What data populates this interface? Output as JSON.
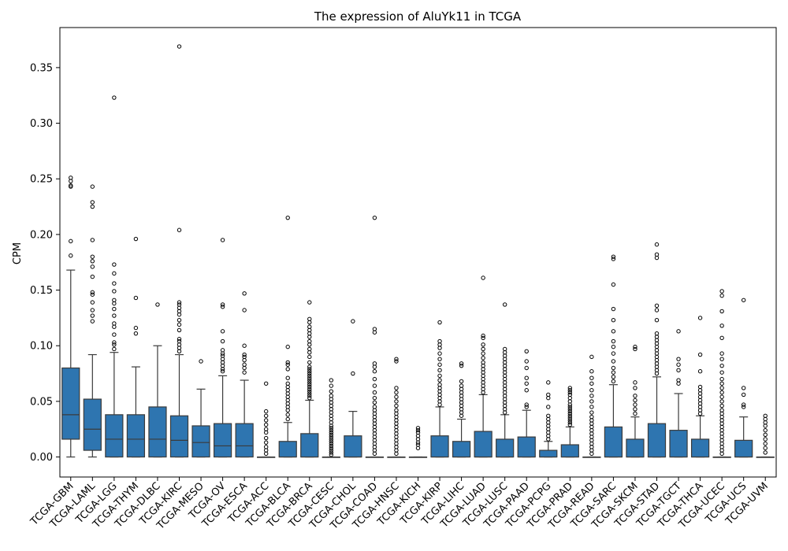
{
  "chart_data": {
    "type": "box",
    "title": "The expression of AluYk11 in TCGA",
    "xlabel": "",
    "ylabel": "CPM",
    "ylim": [
      -0.018,
      0.386
    ],
    "yticks": [
      "0.00",
      "0.05",
      "0.10",
      "0.15",
      "0.20",
      "0.25",
      "0.30",
      "0.35"
    ],
    "grid": false,
    "legend": "none",
    "box_color": "#2e75b0",
    "categories": [
      "TCGA-GBM",
      "TCGA-LAML",
      "TCGA-LGG",
      "TCGA-THYM",
      "TCGA-DLBC",
      "TCGA-KIRC",
      "TCGA-MESO",
      "TCGA-OV",
      "TCGA-ESCA",
      "TCGA-ACC",
      "TCGA-BLCA",
      "TCGA-BRCA",
      "TCGA-CESC",
      "TCGA-CHOL",
      "TCGA-COAD",
      "TCGA-HNSC",
      "TCGA-KICH",
      "TCGA-KIRP",
      "TCGA-LIHC",
      "TCGA-LUAD",
      "TCGA-LUSC",
      "TCGA-PAAD",
      "TCGA-PCPG",
      "TCGA-PRAD",
      "TCGA-READ",
      "TCGA-SARC",
      "TCGA-SKCM",
      "TCGA-STAD",
      "TCGA-TGCT",
      "TCGA-THCA",
      "TCGA-UCEC",
      "TCGA-UCS",
      "TCGA-UVM"
    ],
    "boxes": [
      {
        "q1": 0.016,
        "median": 0.038,
        "q3": 0.08,
        "whislo": 0.0,
        "whishi": 0.168,
        "fliers": [
          0.181,
          0.194,
          0.243,
          0.244,
          0.248,
          0.251
        ]
      },
      {
        "q1": 0.006,
        "median": 0.025,
        "q3": 0.052,
        "whislo": 0.0,
        "whishi": 0.092,
        "fliers": [
          0.122,
          0.127,
          0.132,
          0.139,
          0.146,
          0.148,
          0.162,
          0.171,
          0.176,
          0.18,
          0.195,
          0.225,
          0.229,
          0.243
        ]
      },
      {
        "q1": 0.0,
        "median": 0.016,
        "q3": 0.038,
        "whislo": 0.0,
        "whishi": 0.094,
        "fliers": [
          0.097,
          0.101,
          0.103,
          0.11,
          0.117,
          0.12,
          0.127,
          0.133,
          0.138,
          0.141,
          0.149,
          0.156,
          0.165,
          0.173,
          0.323
        ]
      },
      {
        "q1": 0.0,
        "median": 0.016,
        "q3": 0.038,
        "whislo": 0.0,
        "whishi": 0.081,
        "fliers": [
          0.111,
          0.116,
          0.143,
          0.196
        ]
      },
      {
        "q1": 0.0,
        "median": 0.016,
        "q3": 0.045,
        "whislo": 0.0,
        "whishi": 0.1,
        "fliers": [
          0.137
        ]
      },
      {
        "q1": 0.0,
        "median": 0.015,
        "q3": 0.037,
        "whislo": 0.0,
        "whishi": 0.092,
        "fliers": [
          0.095,
          0.098,
          0.101,
          0.104,
          0.106,
          0.114,
          0.119,
          0.123,
          0.128,
          0.131,
          0.134,
          0.137,
          0.139,
          0.204,
          0.369
        ]
      },
      {
        "q1": 0.0,
        "median": 0.013,
        "q3": 0.028,
        "whislo": 0.0,
        "whishi": 0.061,
        "fliers": [
          0.086
        ]
      },
      {
        "q1": 0.0,
        "median": 0.01,
        "q3": 0.03,
        "whislo": 0.0,
        "whishi": 0.073,
        "fliers": [
          0.077,
          0.079,
          0.082,
          0.085,
          0.088,
          0.091,
          0.093,
          0.096,
          0.104,
          0.113,
          0.135,
          0.137,
          0.195
        ]
      },
      {
        "q1": 0.0,
        "median": 0.01,
        "q3": 0.03,
        "whislo": 0.0,
        "whishi": 0.069,
        "fliers": [
          0.076,
          0.08,
          0.083,
          0.087,
          0.09,
          0.092,
          0.1,
          0.132,
          0.147
        ]
      },
      {
        "q1": 0.0,
        "median": 0.0,
        "q3": 0.0,
        "whislo": 0.0,
        "whishi": 0.0,
        "fliers": [
          0.003,
          0.006,
          0.009,
          0.013,
          0.017,
          0.022,
          0.025,
          0.029,
          0.033,
          0.037,
          0.041,
          0.066
        ]
      },
      {
        "q1": 0.0,
        "median": 0.0,
        "q3": 0.014,
        "whislo": 0.0,
        "whishi": 0.031,
        "fliers": [
          0.034,
          0.038,
          0.042,
          0.045,
          0.048,
          0.051,
          0.054,
          0.057,
          0.06,
          0.063,
          0.066,
          0.071,
          0.079,
          0.083,
          0.085,
          0.099,
          0.215
        ]
      },
      {
        "q1": 0.0,
        "median": 0.0,
        "q3": 0.021,
        "whislo": 0.0,
        "whishi": 0.051,
        "fliers": [
          0.053,
          0.055,
          0.057,
          0.059,
          0.061,
          0.063,
          0.065,
          0.067,
          0.069,
          0.071,
          0.073,
          0.075,
          0.077,
          0.079,
          0.081,
          0.085,
          0.09,
          0.094,
          0.097,
          0.101,
          0.104,
          0.108,
          0.111,
          0.114,
          0.117,
          0.121,
          0.124,
          0.139
        ]
      },
      {
        "q1": 0.0,
        "median": 0.0,
        "q3": 0.0,
        "whislo": 0.0,
        "whishi": 0.0,
        "fliers": [
          0.002,
          0.004,
          0.006,
          0.008,
          0.01,
          0.012,
          0.014,
          0.016,
          0.018,
          0.02,
          0.022,
          0.024,
          0.026,
          0.028,
          0.031,
          0.034,
          0.037,
          0.04,
          0.043,
          0.046,
          0.049,
          0.052,
          0.055,
          0.059,
          0.064,
          0.069
        ]
      },
      {
        "q1": 0.0,
        "median": 0.0,
        "q3": 0.019,
        "whislo": 0.0,
        "whishi": 0.041,
        "fliers": [
          0.075,
          0.122
        ]
      },
      {
        "q1": 0.0,
        "median": 0.0,
        "q3": 0.0,
        "whislo": 0.0,
        "whishi": 0.0,
        "fliers": [
          0.003,
          0.006,
          0.009,
          0.012,
          0.015,
          0.018,
          0.021,
          0.024,
          0.027,
          0.03,
          0.033,
          0.036,
          0.039,
          0.042,
          0.045,
          0.049,
          0.053,
          0.058,
          0.064,
          0.07,
          0.077,
          0.081,
          0.084,
          0.112,
          0.115,
          0.215
        ]
      },
      {
        "q1": 0.0,
        "median": 0.0,
        "q3": 0.0,
        "whislo": 0.0,
        "whishi": 0.0,
        "fliers": [
          0.003,
          0.006,
          0.009,
          0.012,
          0.015,
          0.018,
          0.021,
          0.024,
          0.027,
          0.03,
          0.033,
          0.036,
          0.039,
          0.042,
          0.046,
          0.05,
          0.054,
          0.058,
          0.062,
          0.086,
          0.088
        ]
      },
      {
        "q1": 0.0,
        "median": 0.0,
        "q3": 0.0,
        "whislo": 0.0,
        "whishi": 0.0,
        "fliers": [
          0.008,
          0.011,
          0.013,
          0.016,
          0.019,
          0.022,
          0.024,
          0.026
        ]
      },
      {
        "q1": 0.0,
        "median": 0.0,
        "q3": 0.019,
        "whislo": 0.0,
        "whishi": 0.045,
        "fliers": [
          0.047,
          0.05,
          0.053,
          0.056,
          0.059,
          0.062,
          0.065,
          0.069,
          0.073,
          0.078,
          0.083,
          0.088,
          0.093,
          0.098,
          0.101,
          0.104,
          0.121
        ]
      },
      {
        "q1": 0.0,
        "median": 0.0,
        "q3": 0.014,
        "whislo": 0.0,
        "whishi": 0.034,
        "fliers": [
          0.037,
          0.04,
          0.043,
          0.046,
          0.049,
          0.052,
          0.055,
          0.058,
          0.061,
          0.064,
          0.068,
          0.082,
          0.084
        ]
      },
      {
        "q1": 0.0,
        "median": 0.0,
        "q3": 0.023,
        "whislo": 0.0,
        "whishi": 0.056,
        "fliers": [
          0.058,
          0.061,
          0.064,
          0.067,
          0.07,
          0.073,
          0.076,
          0.079,
          0.082,
          0.085,
          0.089,
          0.093,
          0.097,
          0.101,
          0.107,
          0.109,
          0.161
        ]
      },
      {
        "q1": 0.0,
        "median": 0.0,
        "q3": 0.016,
        "whislo": 0.0,
        "whishi": 0.038,
        "fliers": [
          0.04,
          0.043,
          0.046,
          0.049,
          0.052,
          0.055,
          0.058,
          0.061,
          0.064,
          0.067,
          0.07,
          0.073,
          0.076,
          0.079,
          0.082,
          0.085,
          0.088,
          0.091,
          0.094,
          0.097,
          0.137
        ]
      },
      {
        "q1": 0.0,
        "median": 0.0,
        "q3": 0.018,
        "whislo": 0.0,
        "whishi": 0.042,
        "fliers": [
          0.045,
          0.047,
          0.06,
          0.066,
          0.071,
          0.08,
          0.086,
          0.095
        ]
      },
      {
        "q1": 0.0,
        "median": 0.0,
        "q3": 0.006,
        "whislo": 0.0,
        "whishi": 0.014,
        "fliers": [
          0.016,
          0.019,
          0.022,
          0.025,
          0.028,
          0.031,
          0.034,
          0.037,
          0.045,
          0.053,
          0.056,
          0.067
        ]
      },
      {
        "q1": 0.0,
        "median": 0.0,
        "q3": 0.011,
        "whislo": 0.0,
        "whishi": 0.027,
        "fliers": [
          0.029,
          0.031,
          0.033,
          0.035,
          0.037,
          0.039,
          0.041,
          0.043,
          0.045,
          0.047,
          0.05,
          0.053,
          0.056,
          0.058,
          0.06,
          0.062
        ]
      },
      {
        "q1": 0.0,
        "median": 0.0,
        "q3": 0.0,
        "whislo": 0.0,
        "whishi": 0.0,
        "fliers": [
          0.003,
          0.006,
          0.009,
          0.012,
          0.015,
          0.018,
          0.021,
          0.024,
          0.027,
          0.03,
          0.033,
          0.036,
          0.04,
          0.045,
          0.05,
          0.055,
          0.06,
          0.066,
          0.071,
          0.077,
          0.09
        ]
      },
      {
        "q1": 0.0,
        "median": 0.0,
        "q3": 0.027,
        "whislo": 0.0,
        "whishi": 0.065,
        "fliers": [
          0.068,
          0.072,
          0.076,
          0.08,
          0.086,
          0.093,
          0.099,
          0.104,
          0.113,
          0.123,
          0.133,
          0.155,
          0.178,
          0.18
        ]
      },
      {
        "q1": 0.0,
        "median": 0.0,
        "q3": 0.016,
        "whislo": 0.0,
        "whishi": 0.036,
        "fliers": [
          0.039,
          0.043,
          0.047,
          0.051,
          0.055,
          0.062,
          0.067,
          0.097,
          0.099
        ]
      },
      {
        "q1": 0.0,
        "median": 0.0,
        "q3": 0.03,
        "whislo": 0.0,
        "whishi": 0.072,
        "fliers": [
          0.075,
          0.078,
          0.081,
          0.084,
          0.087,
          0.09,
          0.093,
          0.096,
          0.099,
          0.102,
          0.105,
          0.108,
          0.111,
          0.123,
          0.132,
          0.136,
          0.179,
          0.182,
          0.191
        ]
      },
      {
        "q1": 0.0,
        "median": 0.0,
        "q3": 0.024,
        "whislo": 0.0,
        "whishi": 0.057,
        "fliers": [
          0.066,
          0.069,
          0.078,
          0.083,
          0.088,
          0.113
        ]
      },
      {
        "q1": 0.0,
        "median": 0.0,
        "q3": 0.016,
        "whislo": 0.0,
        "whishi": 0.037,
        "fliers": [
          0.039,
          0.042,
          0.045,
          0.048,
          0.051,
          0.054,
          0.057,
          0.06,
          0.063,
          0.077,
          0.092,
          0.125
        ]
      },
      {
        "q1": 0.0,
        "median": 0.0,
        "q3": 0.0,
        "whislo": 0.0,
        "whishi": 0.0,
        "fliers": [
          0.003,
          0.006,
          0.009,
          0.012,
          0.015,
          0.018,
          0.021,
          0.024,
          0.027,
          0.03,
          0.033,
          0.036,
          0.039,
          0.042,
          0.046,
          0.05,
          0.054,
          0.058,
          0.062,
          0.066,
          0.07,
          0.076,
          0.082,
          0.088,
          0.093,
          0.107,
          0.118,
          0.131,
          0.145,
          0.149
        ]
      },
      {
        "q1": 0.0,
        "median": 0.0,
        "q3": 0.015,
        "whislo": 0.0,
        "whishi": 0.036,
        "fliers": [
          0.045,
          0.047,
          0.056,
          0.062,
          0.141
        ]
      },
      {
        "q1": 0.0,
        "median": 0.0,
        "q3": 0.0,
        "whislo": 0.0,
        "whishi": 0.0,
        "fliers": [
          0.004,
          0.008,
          0.012,
          0.016,
          0.02,
          0.024,
          0.028,
          0.031,
          0.034,
          0.037
        ]
      }
    ]
  }
}
